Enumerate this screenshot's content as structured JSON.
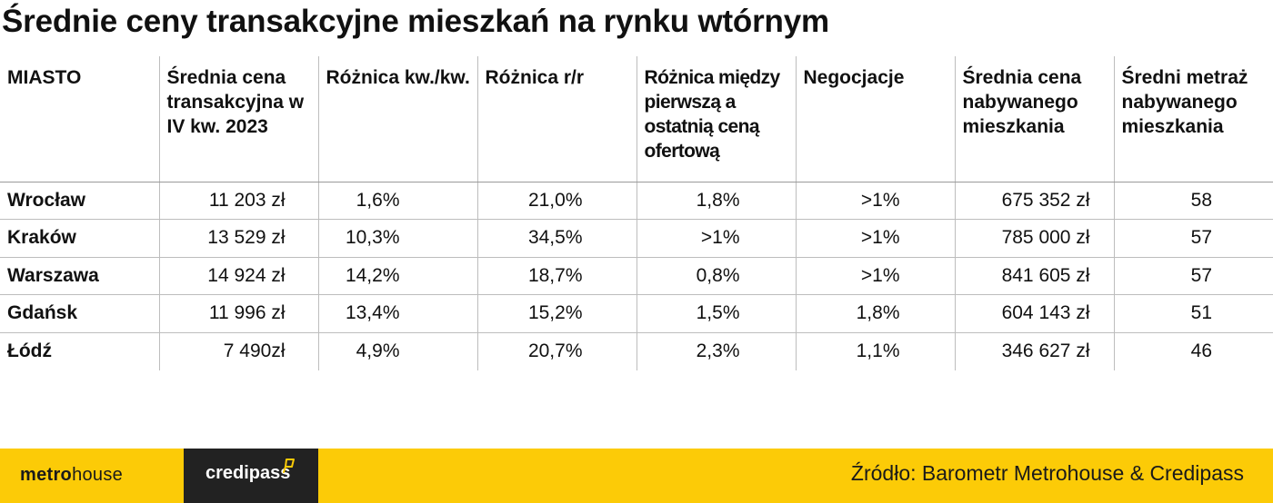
{
  "title": "Średnie ceny transakcyjne mieszkań na rynku wtórnym",
  "table": {
    "headers": [
      "MIASTO",
      "Średnia cena transakcyjna w IV kw. 2023",
      "Różnica kw./kw.",
      "Różnica r/r",
      "Różnica między pierwszą a ostatnią ceną ofertową",
      "Negocjacje",
      "Średnia cena nabywanego mieszkania",
      "Średni metraż nabywanego mieszkania"
    ],
    "rows": [
      [
        "Wrocław",
        "11 203 zł",
        "1,6%",
        "21,0%",
        "1,8%",
        ">1%",
        "675 352 zł",
        "58"
      ],
      [
        "Kraków",
        "13 529 zł",
        "10,3%",
        "34,5%",
        ">1%",
        ">1%",
        "785 000 zł",
        "57"
      ],
      [
        "Warszawa",
        "14 924 zł",
        "14,2%",
        "18,7%",
        "0,8%",
        ">1%",
        "841 605 zł",
        "57"
      ],
      [
        "Gdańsk",
        "11 996 zł",
        "13,4%",
        "15,2%",
        "1,5%",
        "1,8%",
        "604 143 zł",
        "51"
      ],
      [
        "Łódź",
        "7 490zł",
        "4,9%",
        "20,7%",
        "2,3%",
        "1,1%",
        "346 627 zł",
        "46"
      ]
    ]
  },
  "footer": {
    "metrohouse_bold": "metro",
    "metrohouse_light": "house",
    "credipass": "credipass",
    "source": "Źródło: Barometr Metrohouse & Credipass"
  },
  "colors": {
    "footer_bg": "#fccb07",
    "credipass_bg": "#222222",
    "text": "#111111"
  },
  "icons": {
    "credipass_mark": "kite-outline-icon"
  }
}
